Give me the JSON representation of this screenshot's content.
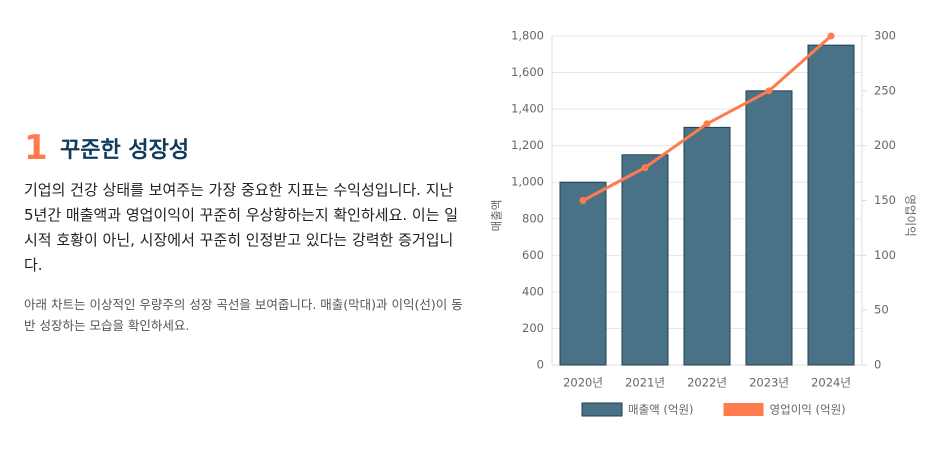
{
  "section": {
    "number": "1",
    "title": "꾸준한 성장성",
    "paragraphs": [
      "기업의 건강 상태를 보여주는 가장 중요한 지표는 수익성입니다. 지난 5년간 매출액과 영업이익이 꾸준히 우상향하는지 확인하세요. 이는 일시적 호황이 아닌, 시장에서 꾸준히 인정받고 있다는 강력한 증거입니다.",
      "아래 차트는 이상적인 우량주의 성장 곡선을 보여줍니다. 매출(막대)과 이익(선)이 동반 성장하는 모습을 확인하세요."
    ]
  },
  "chart_data": {
    "type": "bar",
    "categories": [
      "2020년",
      "2021년",
      "2022년",
      "2023년",
      "2024년"
    ],
    "series": [
      {
        "name": "매출액 (억원)",
        "type": "bar",
        "color": "#4a7287",
        "values": [
          1000,
          1150,
          1300,
          1500,
          1750
        ]
      },
      {
        "name": "영업이익 (억원)",
        "type": "line",
        "color": "#ff7b4d",
        "axis": "y2",
        "values": [
          150,
          180,
          220,
          250,
          300
        ]
      }
    ],
    "y_label": "매출액",
    "y2_label": "영업이익",
    "ylim": [
      0,
      1800
    ],
    "yticks": [
      0,
      200,
      400,
      600,
      800,
      {
        "value": 1000,
        "label": "1,000"
      },
      {
        "value": 1200,
        "label": "1,200"
      },
      {
        "value": 1400,
        "label": "1,400"
      },
      {
        "value": 1600,
        "label": "1,600"
      },
      {
        "value": 1800,
        "label": "1,800"
      }
    ],
    "y2lim": [
      0,
      300
    ],
    "y2ticks": [
      0,
      50,
      100,
      150,
      200,
      250,
      300
    ],
    "grid": true,
    "legend": "bottom"
  }
}
